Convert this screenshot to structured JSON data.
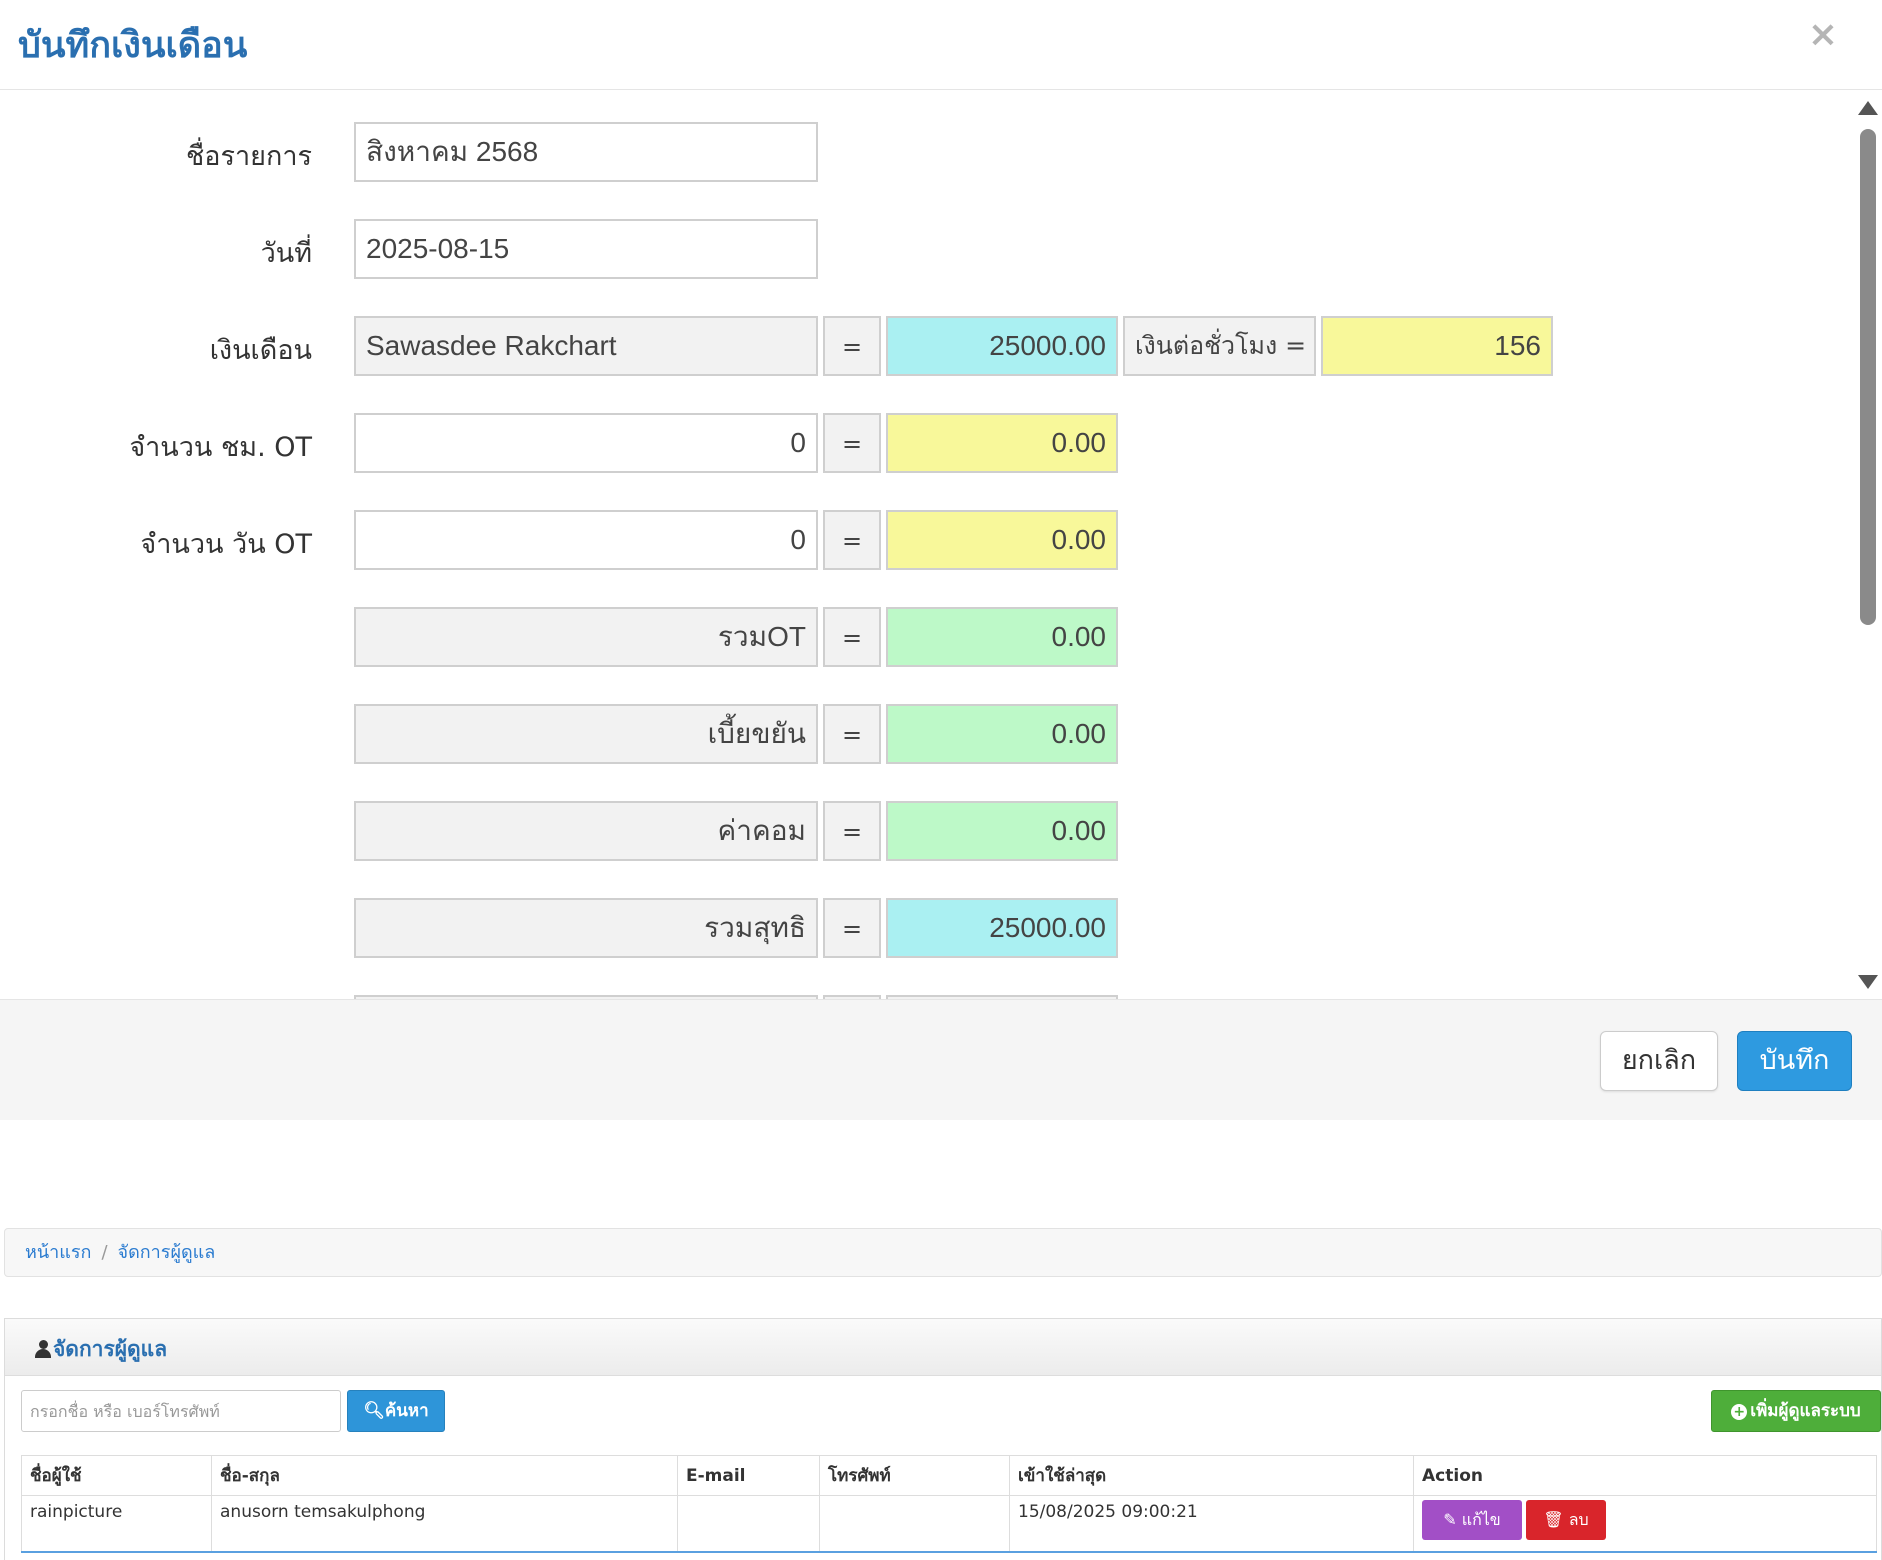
{
  "modal": {
    "title": "บันทึกเงินเดือน",
    "close_symbol": "×",
    "fields": {
      "item_name": {
        "label": "ชื่อรายการ",
        "value": "สิงหาคม 2568"
      },
      "date": {
        "label": "วันที่",
        "value": "2025-08-15"
      },
      "salary": {
        "label": "เงินเดือน",
        "employee": "Sawasdee Rakchart",
        "equals": "=",
        "amount": "25000.00",
        "hourly_label": "เงินต่อชั่วโมง =",
        "hourly_value": "156"
      },
      "ot_hours": {
        "label": "จำนวน ชม. OT",
        "value": "0",
        "equals": "=",
        "amount": "0.00"
      },
      "ot_days": {
        "label": "จำนวน วัน OT",
        "value": "0",
        "equals": "=",
        "amount": "0.00"
      },
      "ot_total": {
        "label": "รวมOT",
        "equals": "=",
        "amount": "0.00"
      },
      "diligence": {
        "label": "เบี้ยขยัน",
        "equals": "=",
        "amount": "0.00"
      },
      "commission": {
        "label": "ค่าคอม",
        "equals": "=",
        "amount": "0.00"
      },
      "net_total": {
        "label": "รวมสุทธิ",
        "equals": "=",
        "amount": "25000.00"
      }
    },
    "footer": {
      "cancel_label": "ยกเลิก",
      "save_label": "บันทึก"
    },
    "colors": {
      "cyan": "#aaf0f2",
      "yellow": "#f8f89a",
      "green": "#bdf9c8",
      "title": "#2a6fb0",
      "save": "#2e9ae0"
    }
  },
  "breadcrumb": {
    "home": "หน้าแรก",
    "separator": "/",
    "current": "จัดการผู้ดูแล"
  },
  "panel": {
    "title": "จัดการผู้ดูแล",
    "search": {
      "placeholder": "กรอกชื่อ หรือ เบอร์โทรศัพท์",
      "button_label": "ค้นหา"
    },
    "add_button_label": "เพิ่มผู้ดูแลระบบ",
    "table": {
      "headers": [
        "ชื่อผู้ใช้",
        "ชื่อ-สกุล",
        "E-mail",
        "โทรศัพท์",
        "เข้าใช้ล่าสุด",
        "Action"
      ],
      "rows": [
        {
          "username": "rainpicture",
          "fullname": "anusorn temsakulphong",
          "email": "",
          "phone": "",
          "last_login": "15/08/2025 09:00:21"
        }
      ],
      "edit_label": "แก้ไข",
      "delete_label": "ลบ"
    },
    "colors": {
      "search": "#2e95d9",
      "add": "#4eae3a",
      "edit": "#a24fc6",
      "delete": "#d9252b"
    }
  }
}
